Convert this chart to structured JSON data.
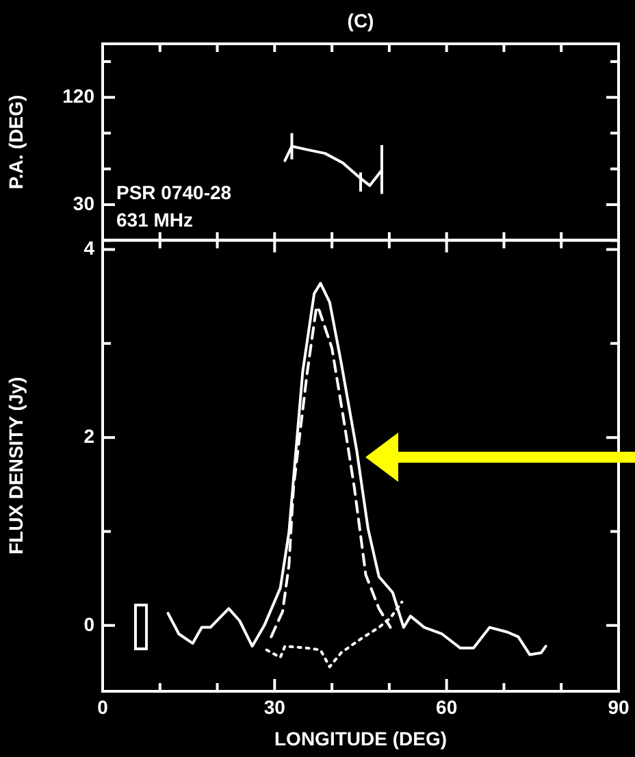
{
  "chart_data": [
    {
      "type": "line",
      "title": "(C)",
      "ylabel": "P.A. (DEG)",
      "annotations": [
        "PSR 0740-28",
        "631 MHz"
      ],
      "x": [
        31.8,
        33,
        35.8,
        38.8,
        41.9,
        45,
        46.6,
        48.7
      ],
      "series": [
        {
          "color": "#ffffff",
          "values": [
            67,
            79,
            76,
            73,
            65,
            52,
            46,
            59
          ],
          "errors": [
            null,
            [
              68,
              90
            ],
            null,
            null,
            null,
            [
              41,
              57
            ],
            null,
            [
              39,
              80
            ]
          ]
        }
      ],
      "xlim": [
        0,
        90
      ],
      "xticks": [
        {
          "value": 0,
          "label": null
        },
        {
          "value": 10,
          "label": null
        },
        {
          "value": 20,
          "label": null
        },
        {
          "value": 30,
          "label": null
        },
        {
          "value": 40,
          "label": null
        },
        {
          "value": 50,
          "label": null
        },
        {
          "value": 60,
          "label": null
        },
        {
          "value": 70,
          "label": null
        },
        {
          "value": 80,
          "label": null
        },
        {
          "value": 90,
          "label": null
        }
      ],
      "ylim": [
        0,
        165
      ],
      "yticks": [
        {
          "value": 0,
          "label": null
        },
        30,
        {
          "value": 60,
          "label": null
        },
        {
          "value": 90,
          "label": null
        },
        120,
        {
          "value": 150,
          "label": null
        }
      ],
      "tick_labels": "y"
    },
    {
      "type": "line",
      "xlabel": "LONGITUDE (DEG)",
      "ylabel": "FLUX DENSITY (Jy)",
      "series": [
        {
          "color": "#ffffff",
          "line_style": "solid",
          "x": [
            11.4,
            13.3,
            15.7,
            17.3,
            18.8,
            22.0,
            23.9,
            26.1,
            28.2,
            31.0,
            32.5,
            34.9,
            36.9,
            38.0,
            39.6,
            41.6,
            44.3,
            46.3,
            48.2,
            50.6,
            52.5,
            53.7,
            56.1,
            59.2,
            62.4,
            64.7,
            67.5,
            70.6,
            72.5,
            74.5,
            76.5,
            77.3
          ],
          "values": [
            0.13,
            -0.09,
            -0.19,
            -0.02,
            -0.02,
            0.18,
            0.05,
            -0.22,
            0.0,
            0.4,
            0.99,
            2.7,
            3.53,
            3.64,
            3.44,
            2.8,
            1.87,
            1.03,
            0.52,
            0.35,
            -0.02,
            0.1,
            -0.02,
            -0.09,
            -0.24,
            -0.24,
            -0.02,
            -0.07,
            -0.12,
            -0.31,
            -0.29,
            -0.22
          ]
        },
        {
          "color": "#ffffff",
          "line_style": "dashed",
          "x": [
            29.4,
            31.4,
            32.5,
            33.3,
            35.7,
            37.3,
            37.8,
            40.0,
            42.0,
            43.9,
            45.9,
            48.2,
            50.2
          ],
          "values": [
            -0.12,
            0.15,
            0.64,
            1.47,
            2.7,
            3.39,
            3.35,
            2.95,
            2.21,
            1.47,
            0.54,
            0.18,
            -0.02
          ]
        },
        {
          "color": "#ffffff",
          "line_style": "dotted",
          "x": [
            28.6,
            31.0,
            31.8,
            35.7,
            38.0,
            39.6,
            41.6,
            45.1,
            48.2,
            50.2,
            52.2
          ],
          "values": [
            -0.26,
            -0.34,
            -0.22,
            -0.24,
            -0.26,
            -0.44,
            -0.29,
            -0.14,
            -0.02,
            0.08,
            0.25
          ]
        }
      ],
      "xlim": [
        0,
        90
      ],
      "xticks": [
        0,
        {
          "value": 10,
          "label": null
        },
        {
          "value": 20,
          "label": null
        },
        30,
        {
          "value": 40,
          "label": null
        },
        {
          "value": 50,
          "label": null
        },
        60,
        {
          "value": 70,
          "label": null
        },
        {
          "value": 80,
          "label": null
        },
        90
      ],
      "ylim": [
        -0.7,
        4.1
      ],
      "yticks": [
        0,
        {
          "value": 1,
          "label": null
        },
        2,
        {
          "value": 3,
          "label": null
        },
        4
      ]
    }
  ]
}
